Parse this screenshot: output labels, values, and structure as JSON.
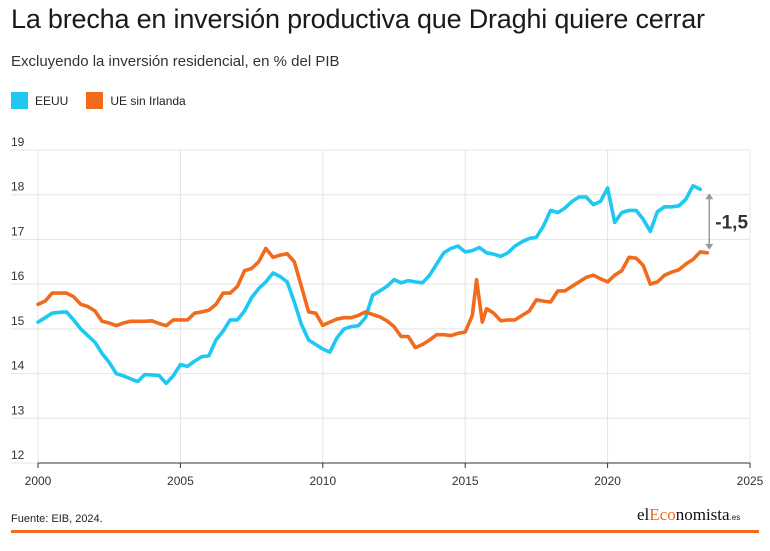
{
  "header": {
    "title": "La brecha en inversión productiva que Draghi quiere cerrar",
    "subtitle": "Excluyendo la inversión residencial, en % del PIB"
  },
  "footer": {
    "source": "Fuente: EIB, 2024.",
    "brand_prefix": "el",
    "brand_accent": "Eco",
    "brand_suffix": "nomista",
    "brand_tld": ".es"
  },
  "colors": {
    "eeuu": "#1ec8f2",
    "ue": "#f26b1d",
    "grid": "#e4e4e4",
    "annotation_arrow": "#9a9a9a"
  },
  "chart_data": {
    "type": "line",
    "title": "La brecha en inversión productiva que Draghi quiere cerrar",
    "subtitle": "Excluyendo la inversión residencial, en % del PIB",
    "xlabel": "",
    "ylabel": "",
    "xlim": [
      2000,
      2025
    ],
    "ylim": [
      12,
      19
    ],
    "x_ticks": [
      2000,
      2005,
      2010,
      2015,
      2020,
      2025
    ],
    "y_ticks": [
      12,
      13,
      14,
      15,
      16,
      17,
      18,
      19
    ],
    "grid": true,
    "legend_position": "top-left",
    "annotation": {
      "text": "-1,5",
      "x": 2023.5,
      "y_from": 18.1,
      "y_to": 16.7
    },
    "series": [
      {
        "name": "EEUU",
        "color": "#1ec8f2",
        "points": [
          [
            2000.0,
            15.15
          ],
          [
            2000.25,
            15.25
          ],
          [
            2000.5,
            15.35
          ],
          [
            2000.75,
            15.37
          ],
          [
            2001.0,
            15.38
          ],
          [
            2001.25,
            15.2
          ],
          [
            2001.5,
            15.0
          ],
          [
            2001.75,
            14.85
          ],
          [
            2002.0,
            14.7
          ],
          [
            2002.25,
            14.45
          ],
          [
            2002.5,
            14.25
          ],
          [
            2002.75,
            14.0
          ],
          [
            2003.0,
            13.95
          ],
          [
            2003.25,
            13.88
          ],
          [
            2003.5,
            13.82
          ],
          [
            2003.75,
            13.98
          ],
          [
            2004.0,
            13.97
          ],
          [
            2004.25,
            13.96
          ],
          [
            2004.5,
            13.78
          ],
          [
            2004.75,
            13.95
          ],
          [
            2005.0,
            14.2
          ],
          [
            2005.25,
            14.16
          ],
          [
            2005.5,
            14.28
          ],
          [
            2005.75,
            14.38
          ],
          [
            2006.0,
            14.4
          ],
          [
            2006.25,
            14.75
          ],
          [
            2006.5,
            14.95
          ],
          [
            2006.75,
            15.2
          ],
          [
            2007.0,
            15.2
          ],
          [
            2007.25,
            15.4
          ],
          [
            2007.5,
            15.7
          ],
          [
            2007.75,
            15.9
          ],
          [
            2008.0,
            16.05
          ],
          [
            2008.25,
            16.25
          ],
          [
            2008.5,
            16.17
          ],
          [
            2008.75,
            16.05
          ],
          [
            2009.0,
            15.6
          ],
          [
            2009.25,
            15.1
          ],
          [
            2009.5,
            14.75
          ],
          [
            2009.75,
            14.65
          ],
          [
            2010.0,
            14.55
          ],
          [
            2010.25,
            14.48
          ],
          [
            2010.5,
            14.8
          ],
          [
            2010.75,
            15.0
          ],
          [
            2011.0,
            15.05
          ],
          [
            2011.25,
            15.07
          ],
          [
            2011.5,
            15.25
          ],
          [
            2011.75,
            15.75
          ],
          [
            2012.0,
            15.85
          ],
          [
            2012.25,
            15.95
          ],
          [
            2012.5,
            16.1
          ],
          [
            2012.75,
            16.03
          ],
          [
            2013.0,
            16.08
          ],
          [
            2013.25,
            16.05
          ],
          [
            2013.5,
            16.03
          ],
          [
            2013.75,
            16.2
          ],
          [
            2014.0,
            16.45
          ],
          [
            2014.25,
            16.7
          ],
          [
            2014.5,
            16.8
          ],
          [
            2014.75,
            16.85
          ],
          [
            2015.0,
            16.72
          ],
          [
            2015.25,
            16.75
          ],
          [
            2015.5,
            16.82
          ],
          [
            2015.75,
            16.7
          ],
          [
            2016.0,
            16.67
          ],
          [
            2016.25,
            16.62
          ],
          [
            2016.5,
            16.7
          ],
          [
            2016.75,
            16.85
          ],
          [
            2017.0,
            16.95
          ],
          [
            2017.25,
            17.02
          ],
          [
            2017.5,
            17.05
          ],
          [
            2017.75,
            17.3
          ],
          [
            2018.0,
            17.65
          ],
          [
            2018.25,
            17.6
          ],
          [
            2018.5,
            17.7
          ],
          [
            2018.75,
            17.85
          ],
          [
            2019.0,
            17.95
          ],
          [
            2019.25,
            17.95
          ],
          [
            2019.5,
            17.78
          ],
          [
            2019.75,
            17.85
          ],
          [
            2020.0,
            18.15
          ],
          [
            2020.25,
            17.38
          ],
          [
            2020.5,
            17.6
          ],
          [
            2020.75,
            17.65
          ],
          [
            2021.0,
            17.65
          ],
          [
            2021.25,
            17.45
          ],
          [
            2021.5,
            17.18
          ],
          [
            2021.75,
            17.62
          ],
          [
            2022.0,
            17.73
          ],
          [
            2022.25,
            17.73
          ],
          [
            2022.5,
            17.75
          ],
          [
            2022.75,
            17.9
          ],
          [
            2023.0,
            18.2
          ],
          [
            2023.25,
            18.12
          ]
        ]
      },
      {
        "name": "UE sin Irlanda",
        "color": "#f26b1d",
        "points": [
          [
            2000.0,
            15.55
          ],
          [
            2000.25,
            15.62
          ],
          [
            2000.5,
            15.8
          ],
          [
            2000.75,
            15.8
          ],
          [
            2001.0,
            15.8
          ],
          [
            2001.25,
            15.72
          ],
          [
            2001.5,
            15.55
          ],
          [
            2001.75,
            15.5
          ],
          [
            2002.0,
            15.4
          ],
          [
            2002.25,
            15.17
          ],
          [
            2002.5,
            15.13
          ],
          [
            2002.75,
            15.07
          ],
          [
            2003.0,
            15.13
          ],
          [
            2003.25,
            15.17
          ],
          [
            2003.5,
            15.17
          ],
          [
            2003.75,
            15.17
          ],
          [
            2004.0,
            15.18
          ],
          [
            2004.25,
            15.12
          ],
          [
            2004.5,
            15.07
          ],
          [
            2004.75,
            15.2
          ],
          [
            2005.0,
            15.2
          ],
          [
            2005.25,
            15.2
          ],
          [
            2005.5,
            15.35
          ],
          [
            2005.75,
            15.38
          ],
          [
            2006.0,
            15.42
          ],
          [
            2006.25,
            15.55
          ],
          [
            2006.5,
            15.8
          ],
          [
            2006.75,
            15.8
          ],
          [
            2007.0,
            15.95
          ],
          [
            2007.25,
            16.3
          ],
          [
            2007.5,
            16.35
          ],
          [
            2007.75,
            16.5
          ],
          [
            2008.0,
            16.8
          ],
          [
            2008.25,
            16.6
          ],
          [
            2008.5,
            16.65
          ],
          [
            2008.75,
            16.68
          ],
          [
            2009.0,
            16.5
          ],
          [
            2009.25,
            15.95
          ],
          [
            2009.5,
            15.38
          ],
          [
            2009.75,
            15.35
          ],
          [
            2010.0,
            15.08
          ],
          [
            2010.25,
            15.15
          ],
          [
            2010.5,
            15.22
          ],
          [
            2010.75,
            15.25
          ],
          [
            2011.0,
            15.25
          ],
          [
            2011.25,
            15.3
          ],
          [
            2011.5,
            15.38
          ],
          [
            2011.75,
            15.32
          ],
          [
            2012.0,
            15.27
          ],
          [
            2012.25,
            15.18
          ],
          [
            2012.5,
            15.05
          ],
          [
            2012.75,
            14.83
          ],
          [
            2013.0,
            14.83
          ],
          [
            2013.25,
            14.58
          ],
          [
            2013.5,
            14.65
          ],
          [
            2013.75,
            14.75
          ],
          [
            2014.0,
            14.87
          ],
          [
            2014.25,
            14.87
          ],
          [
            2014.5,
            14.85
          ],
          [
            2014.75,
            14.9
          ],
          [
            2015.0,
            14.93
          ],
          [
            2015.25,
            15.3
          ],
          [
            2015.4,
            16.1
          ],
          [
            2015.6,
            15.15
          ],
          [
            2015.75,
            15.45
          ],
          [
            2016.0,
            15.35
          ],
          [
            2016.25,
            15.18
          ],
          [
            2016.5,
            15.2
          ],
          [
            2016.75,
            15.2
          ],
          [
            2017.0,
            15.3
          ],
          [
            2017.25,
            15.4
          ],
          [
            2017.5,
            15.65
          ],
          [
            2017.75,
            15.62
          ],
          [
            2018.0,
            15.6
          ],
          [
            2018.25,
            15.85
          ],
          [
            2018.5,
            15.85
          ],
          [
            2018.75,
            15.95
          ],
          [
            2019.0,
            16.05
          ],
          [
            2019.25,
            16.15
          ],
          [
            2019.5,
            16.2
          ],
          [
            2019.75,
            16.12
          ],
          [
            2020.0,
            16.05
          ],
          [
            2020.25,
            16.2
          ],
          [
            2020.5,
            16.3
          ],
          [
            2020.75,
            16.6
          ],
          [
            2021.0,
            16.58
          ],
          [
            2021.25,
            16.42
          ],
          [
            2021.5,
            16.0
          ],
          [
            2021.75,
            16.05
          ],
          [
            2022.0,
            16.2
          ],
          [
            2022.25,
            16.27
          ],
          [
            2022.5,
            16.32
          ],
          [
            2022.75,
            16.45
          ],
          [
            2023.0,
            16.55
          ],
          [
            2023.25,
            16.72
          ],
          [
            2023.5,
            16.7
          ]
        ]
      }
    ]
  }
}
